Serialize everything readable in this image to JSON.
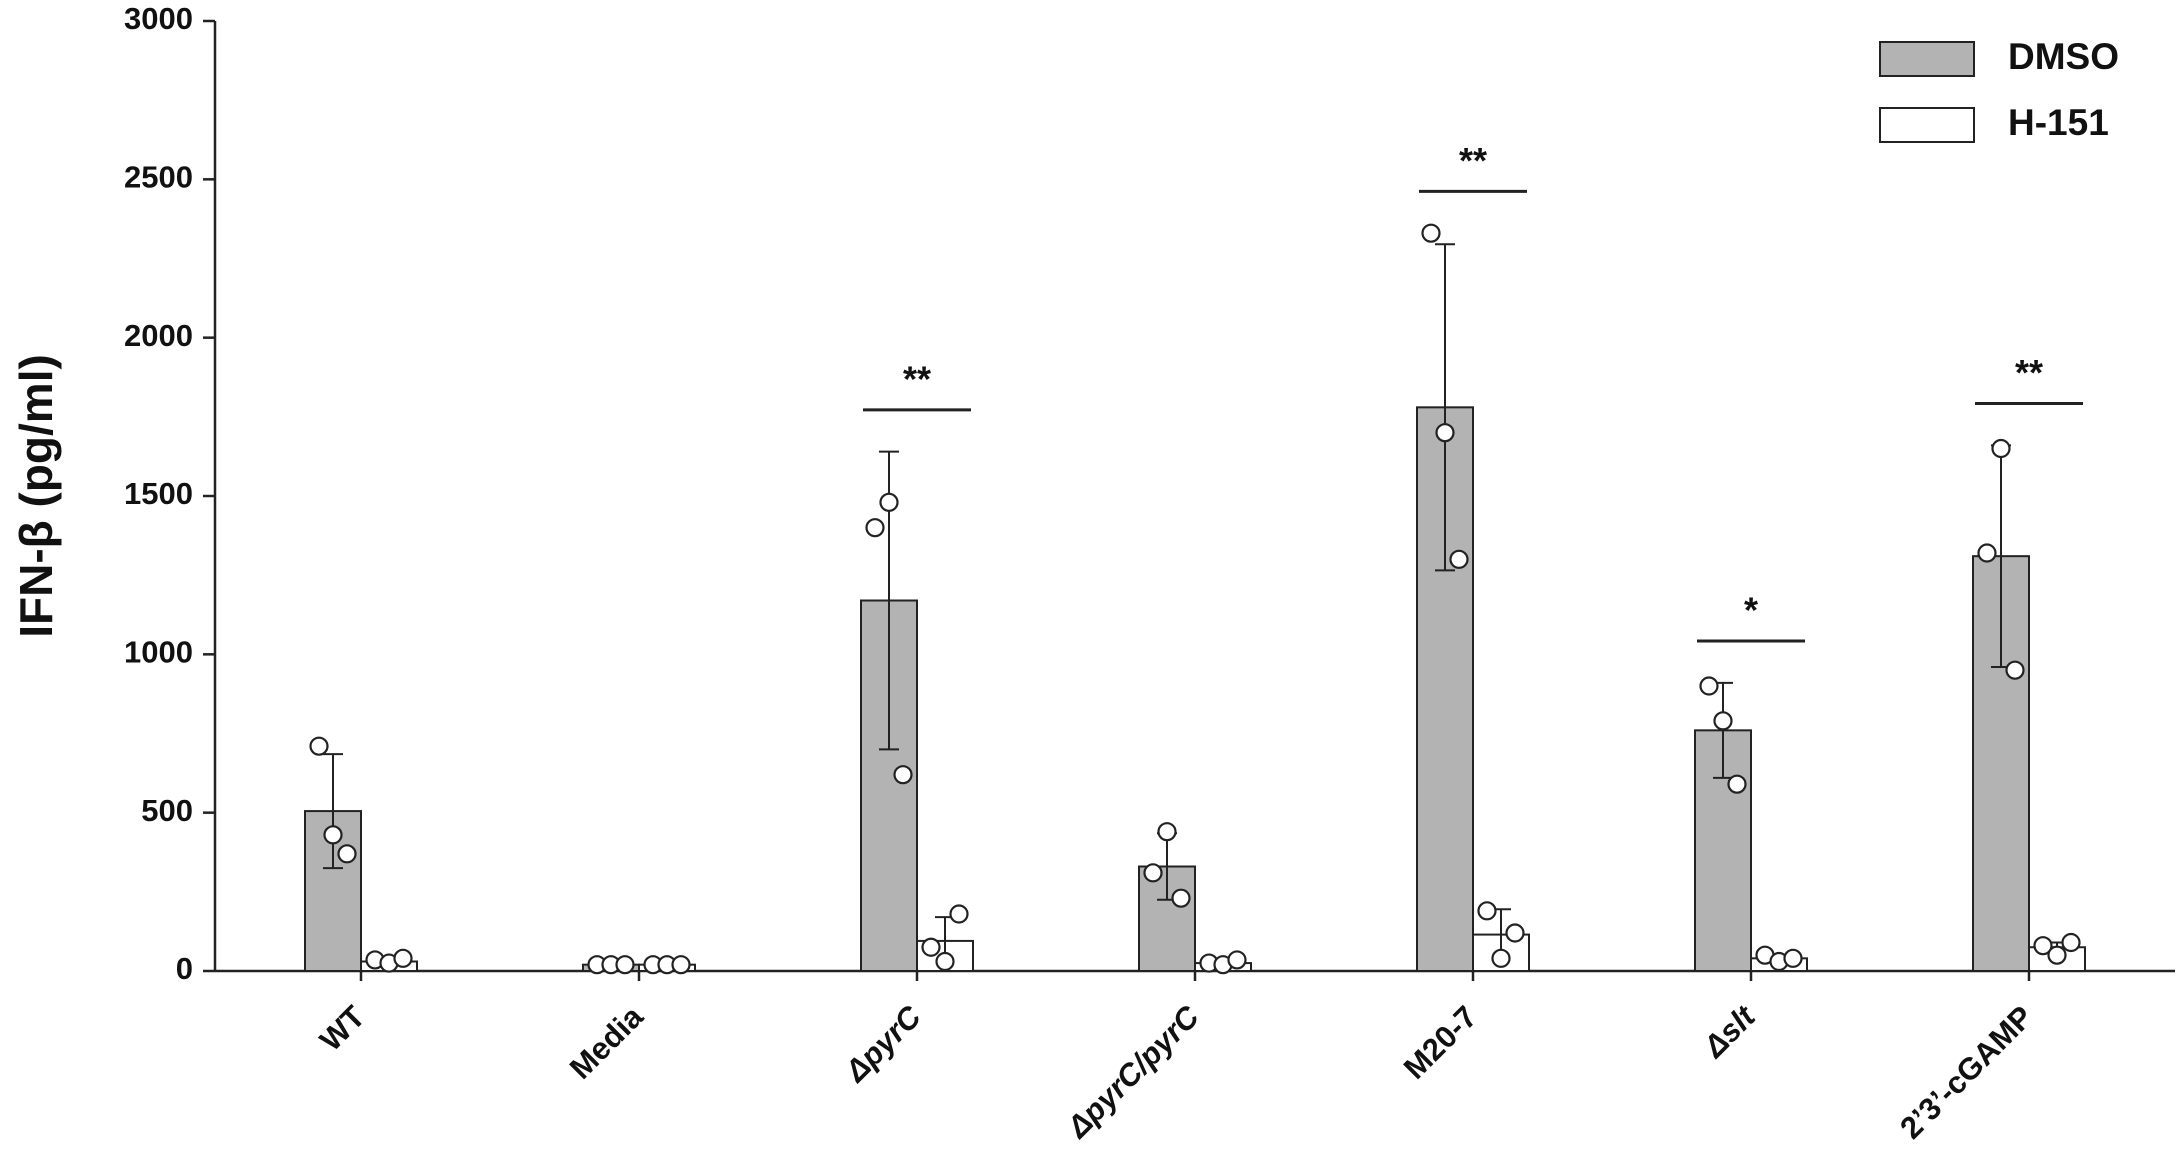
{
  "chart_data": {
    "type": "bar",
    "y_label": "IFN-β (pg/ml)",
    "categories": [
      "WT",
      "Media",
      "ΔpyrC",
      "ΔpyrC/pyrC",
      "M20-7",
      "Δslt",
      "2’3’-cGAMP"
    ],
    "series": [
      {
        "name": "DMSO",
        "color": "#b3b3b3",
        "values": [
          505,
          20,
          1170,
          330,
          1780,
          760,
          1310
        ],
        "errors": [
          180,
          0,
          470,
          105,
          515,
          150,
          350
        ],
        "points": [
          [
            710,
            430,
            370
          ],
          [
            20,
            20,
            20
          ],
          [
            1400,
            1480,
            620
          ],
          [
            310,
            440,
            230
          ],
          [
            2330,
            1700,
            1300
          ],
          [
            900,
            790,
            590
          ],
          [
            1320,
            1650,
            950
          ]
        ]
      },
      {
        "name": "H-151",
        "color": "#ffffff",
        "values": [
          30,
          20,
          95,
          25,
          115,
          40,
          75
        ],
        "errors": [
          0,
          0,
          75,
          0,
          80,
          0,
          15
        ],
        "points": [
          [
            35,
            25,
            40
          ],
          [
            20,
            20,
            20
          ],
          [
            75,
            30,
            180
          ],
          [
            25,
            20,
            35
          ],
          [
            190,
            40,
            120
          ],
          [
            50,
            30,
            40
          ],
          [
            80,
            50,
            90
          ]
        ]
      }
    ],
    "significance": [
      null,
      null,
      "**",
      null,
      "**",
      "*",
      "**"
    ],
    "ylim": [
      0,
      3000
    ],
    "yticks": [
      0,
      500,
      1000,
      1500,
      2000,
      2500,
      3000
    ],
    "legend": "top-right"
  }
}
